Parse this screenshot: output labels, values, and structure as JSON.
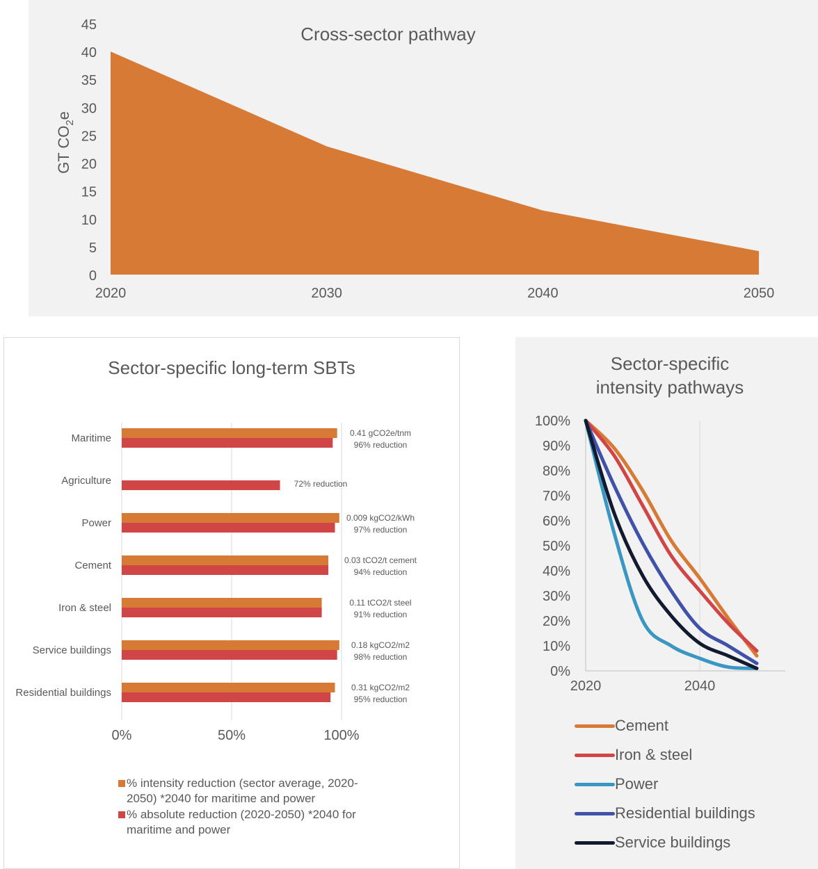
{
  "chart_data": [
    {
      "type": "area",
      "title": "Cross-sector pathway",
      "ylabel_main": "GT CO",
      "ylabel_sub": "2",
      "ylabel_tail": "e",
      "x": [
        2020,
        2030,
        2040,
        2050
      ],
      "x_ticks": [
        "2020",
        "2030",
        "2040",
        "2050"
      ],
      "values": [
        40,
        23,
        11.5,
        4.2
      ],
      "ylim": [
        0,
        45
      ],
      "y_ticks": [
        "0",
        "5",
        "10",
        "15",
        "20",
        "25",
        "30",
        "35",
        "40",
        "45"
      ],
      "color": "#D77A35"
    },
    {
      "type": "bar",
      "orientation": "horizontal",
      "title": "Sector-specific long-term SBTs",
      "categories": [
        "Maritime",
        "Agriculture",
        "Power",
        "Cement",
        "Iron & steel",
        "Service buildings",
        "Residential buildings"
      ],
      "series": [
        {
          "name": "% intensity reduction (sector average, 2020-2050) *2040 for maritime and power",
          "values": [
            98,
            null,
            99,
            94,
            91,
            99,
            97
          ],
          "color": "#D77A35"
        },
        {
          "name": "% absolute reduction (2020-2050) *2040 for maritime and power",
          "values": [
            96,
            72,
            97,
            94,
            91,
            98,
            95
          ],
          "color": "#D04545"
        }
      ],
      "labels_top": [
        "0.41 gCO2e/tnm",
        "",
        "0.009 kgCO2/kWh",
        "0.03 tCO2/t cement",
        "0.11 tCO2/t steel",
        "0.18 kgCO2/m2",
        "0.31 kgCO2/m2"
      ],
      "labels_bottom": [
        "96% reduction",
        "72% reduction",
        "97% reduction",
        "94% reduction",
        "91% reduction",
        "98% reduction",
        "95% reduction"
      ],
      "x_ticks": [
        "0%",
        "50%",
        "100%"
      ],
      "xlim": [
        0,
        100
      ],
      "legend_lines": [
        [
          "% intensity reduction (sector average, 2020-",
          "2050) *2040 for maritime and power"
        ],
        [
          "% absolute reduction (2020-2050) *2040 for",
          "maritime and power"
        ]
      ]
    },
    {
      "type": "line",
      "title_lines": [
        "Sector-specific",
        "intensity pathways"
      ],
      "x_ticks": [
        "2020",
        "2040"
      ],
      "xlim": [
        2020,
        2055
      ],
      "ylim": [
        0,
        100
      ],
      "y_ticks": [
        "0%",
        "10%",
        "20%",
        "30%",
        "40%",
        "50%",
        "60%",
        "70%",
        "80%",
        "90%",
        "100%"
      ],
      "x": [
        2020,
        2025,
        2030,
        2035,
        2040,
        2045,
        2050
      ],
      "series": [
        {
          "name": "Cement",
          "color": "#D77A35",
          "values": [
            100,
            89,
            72,
            52,
            37,
            21,
            6
          ]
        },
        {
          "name": "Iron & steel",
          "color": "#D04545",
          "values": [
            100,
            86,
            66,
            46,
            32,
            19,
            8
          ]
        },
        {
          "name": "Power",
          "color": "#3A97C4",
          "values": [
            100,
            55,
            20,
            10,
            5,
            1.5,
            1
          ]
        },
        {
          "name": "Residential buildings",
          "color": "#3F51A8",
          "values": [
            100,
            74,
            51,
            32,
            17,
            10,
            3
          ]
        },
        {
          "name": "Service buildings",
          "color": "#111A2E",
          "values": [
            100,
            63,
            38,
            22,
            11,
            6,
            1
          ]
        }
      ]
    }
  ]
}
